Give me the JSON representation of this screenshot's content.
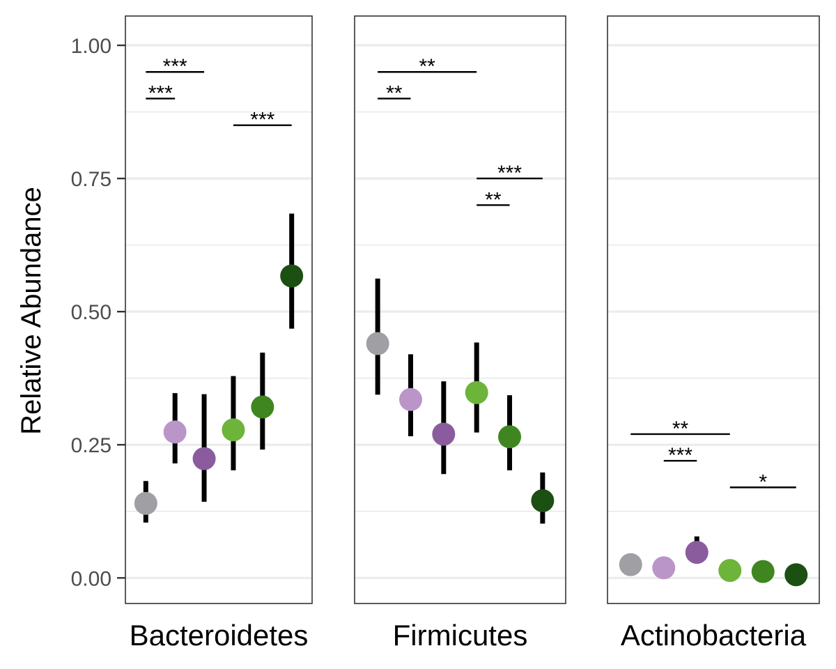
{
  "chart_data": {
    "type": "scatter",
    "ylabel": "Relative Abundance",
    "ylim": [
      -0.048,
      1.055
    ],
    "y_ticks": [
      0.0,
      0.25,
      0.5,
      0.75,
      1.0
    ],
    "y_tick_labels": [
      "0.00",
      "0.25",
      "0.50",
      "0.75",
      "1.00"
    ],
    "grid": true,
    "legend": "none",
    "group_colors": [
      "#a09fa4",
      "#b995c8",
      "#8a5c9e",
      "#6db43a",
      "#3f8620",
      "#1c4f12"
    ],
    "panels": [
      {
        "name": "Bacteroidetes",
        "groups": [
          {
            "mean": 0.14,
            "low": 0.104,
            "high": 0.182
          },
          {
            "mean": 0.274,
            "low": 0.215,
            "high": 0.347
          },
          {
            "mean": 0.224,
            "low": 0.143,
            "high": 0.345
          },
          {
            "mean": 0.278,
            "low": 0.202,
            "high": 0.379
          },
          {
            "mean": 0.321,
            "low": 0.241,
            "high": 0.423
          },
          {
            "mean": 0.567,
            "low": 0.468,
            "high": 0.684
          }
        ],
        "comparisons": [
          {
            "from": 1,
            "to": 3,
            "y": 0.95,
            "label": "***"
          },
          {
            "from": 1,
            "to": 2,
            "y": 0.9,
            "label": "***"
          },
          {
            "from": 4,
            "to": 6,
            "y": 0.85,
            "label": "***"
          }
        ]
      },
      {
        "name": "Firmicutes",
        "groups": [
          {
            "mean": 0.44,
            "low": 0.344,
            "high": 0.562
          },
          {
            "mean": 0.335,
            "low": 0.266,
            "high": 0.42
          },
          {
            "mean": 0.27,
            "low": 0.195,
            "high": 0.369
          },
          {
            "mean": 0.348,
            "low": 0.273,
            "high": 0.442
          },
          {
            "mean": 0.265,
            "low": 0.202,
            "high": 0.343
          },
          {
            "mean": 0.145,
            "low": 0.102,
            "high": 0.198
          }
        ],
        "comparisons": [
          {
            "from": 1,
            "to": 4,
            "y": 0.95,
            "label": "**"
          },
          {
            "from": 1,
            "to": 2,
            "y": 0.9,
            "label": "**"
          },
          {
            "from": 4,
            "to": 6,
            "y": 0.75,
            "label": "***"
          },
          {
            "from": 4,
            "to": 5,
            "y": 0.7,
            "label": "**"
          }
        ]
      },
      {
        "name": "Actinobacteria",
        "groups": [
          {
            "mean": 0.025,
            "low": 0.015,
            "high": 0.046
          },
          {
            "mean": 0.019,
            "low": 0.012,
            "high": 0.027
          },
          {
            "mean": 0.048,
            "low": 0.027,
            "high": 0.078
          },
          {
            "mean": 0.014,
            "low": 0.009,
            "high": 0.02
          },
          {
            "mean": 0.012,
            "low": 0.008,
            "high": 0.017
          },
          {
            "mean": 0.006,
            "low": 0.004,
            "high": 0.009
          }
        ],
        "comparisons": [
          {
            "from": 1,
            "to": 4,
            "y": 0.27,
            "label": "**"
          },
          {
            "from": 2,
            "to": 3,
            "y": 0.22,
            "label": "***"
          },
          {
            "from": 4,
            "to": 6,
            "y": 0.17,
            "label": "*"
          }
        ]
      }
    ]
  }
}
